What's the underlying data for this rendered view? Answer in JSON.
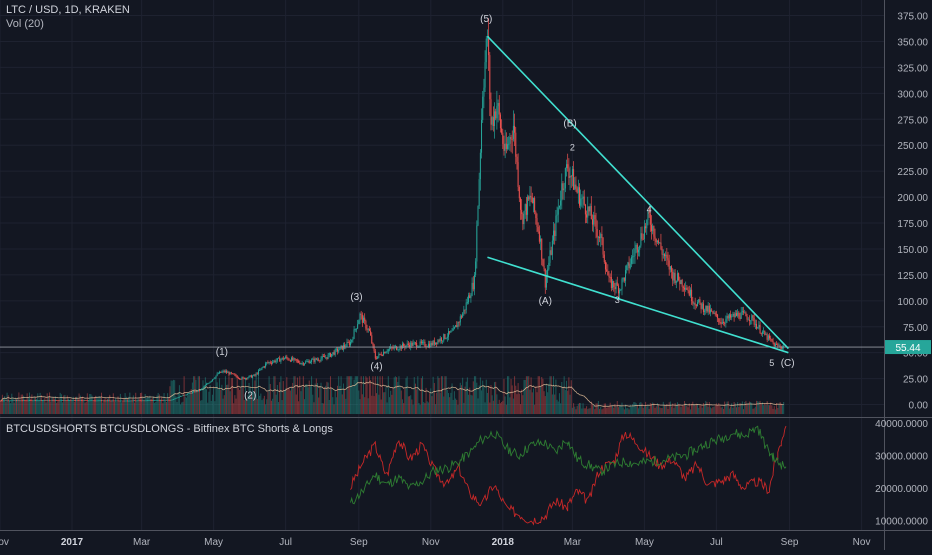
{
  "header": {
    "symbol_line": "LTC / USD, 1D, KRAKEN",
    "volume_line": "Vol (20)",
    "indicator_line": "BTCUSDSHORTS BTCUSDLONGS - Bitfinex BTC Shorts & Longs"
  },
  "price_badge": "55.44",
  "colors": {
    "background": "#131722",
    "up": "#26a69a",
    "down": "#ef5350",
    "trendline": "#40e0d0",
    "price_badge": "#26a69a",
    "shorts": "#c62828",
    "longs": "#2e7d32",
    "volume_ma": "#f0c8a0"
  },
  "chart_data": [
    {
      "type": "candlestick",
      "title": "LTC / USD, 1D, KRAKEN",
      "x_ticks": [
        "Nov",
        "2017",
        "Mar",
        "May",
        "Jul",
        "Sep",
        "Nov",
        "2018",
        "Mar",
        "May",
        "Jul",
        "Sep",
        "Nov"
      ],
      "y_ticks": [
        0,
        25,
        50,
        75,
        100,
        125,
        150,
        175,
        200,
        225,
        250,
        275,
        300,
        325,
        350,
        375
      ],
      "y_tick_labels": [
        "0.00",
        "25.00",
        "50.00",
        "75.00",
        "100.00",
        "125.00",
        "150.00",
        "175.00",
        "200.00",
        "225.00",
        "250.00",
        "275.00",
        "300.00",
        "325.00",
        "350.00",
        "375.00"
      ],
      "ylim": [
        -12,
        390
      ],
      "xlim": [
        "2016-11-01",
        "2018-11-20"
      ],
      "last_price": 55.44,
      "price_path": [
        [
          "2016-11-01",
          4
        ],
        [
          "2017-01-01",
          4.2
        ],
        [
          "2017-02-15",
          3.8
        ],
        [
          "2017-03-26",
          4.5
        ],
        [
          "2017-04-05",
          9
        ],
        [
          "2017-04-20",
          14
        ],
        [
          "2017-05-05",
          30
        ],
        [
          "2017-05-10",
          32
        ],
        [
          "2017-05-25",
          25
        ],
        [
          "2017-06-05",
          28
        ],
        [
          "2017-06-15",
          40
        ],
        [
          "2017-07-01",
          45
        ],
        [
          "2017-07-15",
          40
        ],
        [
          "2017-08-05",
          46
        ],
        [
          "2017-08-25",
          60
        ],
        [
          "2017-09-02",
          86
        ],
        [
          "2017-09-10",
          70
        ],
        [
          "2017-09-15",
          45
        ],
        [
          "2017-09-25",
          53
        ],
        [
          "2017-10-15",
          58
        ],
        [
          "2017-11-01",
          58
        ],
        [
          "2017-11-20",
          70
        ],
        [
          "2017-11-29",
          90
        ],
        [
          "2017-12-08",
          120
        ],
        [
          "2017-12-12",
          220
        ],
        [
          "2017-12-15",
          305
        ],
        [
          "2017-12-19",
          355
        ],
        [
          "2017-12-22",
          270
        ],
        [
          "2017-12-27",
          290
        ],
        [
          "2018-01-03",
          240
        ],
        [
          "2018-01-10",
          270
        ],
        [
          "2018-01-17",
          180
        ],
        [
          "2018-01-25",
          200
        ],
        [
          "2018-02-01",
          165
        ],
        [
          "2018-02-06",
          118
        ],
        [
          "2018-02-12",
          155
        ],
        [
          "2018-02-20",
          210
        ],
        [
          "2018-02-25",
          230
        ],
        [
          "2018-03-05",
          205
        ],
        [
          "2018-03-15",
          185
        ],
        [
          "2018-03-25",
          160
        ],
        [
          "2018-04-01",
          118
        ],
        [
          "2018-04-10",
          112
        ],
        [
          "2018-04-20",
          140
        ],
        [
          "2018-05-01",
          170
        ],
        [
          "2018-05-05",
          180
        ],
        [
          "2018-05-15",
          150
        ],
        [
          "2018-05-25",
          125
        ],
        [
          "2018-06-05",
          115
        ],
        [
          "2018-06-12",
          100
        ],
        [
          "2018-06-25",
          90
        ],
        [
          "2018-07-05",
          80
        ],
        [
          "2018-07-20",
          87
        ],
        [
          "2018-07-30",
          84
        ],
        [
          "2018-08-10",
          68
        ],
        [
          "2018-08-20",
          57
        ],
        [
          "2018-08-27",
          55.44
        ]
      ],
      "wave_labels": [
        {
          "text": "(1)",
          "date": "2017-05-08",
          "price": 48
        },
        {
          "text": "(2)",
          "date": "2017-06-01",
          "price": 6
        },
        {
          "text": "(3)",
          "date": "2017-08-30",
          "price": 101
        },
        {
          "text": "(4)",
          "date": "2017-09-16",
          "price": 34
        },
        {
          "text": "(5)",
          "date": "2017-12-18",
          "price": 369
        },
        {
          "text": "(A)",
          "date": "2018-02-06",
          "price": 97
        },
        {
          "text": "(B)",
          "date": "2018-02-27",
          "price": 268
        },
        {
          "text": "2",
          "date": "2018-03-01",
          "price": 245
        },
        {
          "text": "3",
          "date": "2018-04-08",
          "price": 98
        },
        {
          "text": "4",
          "date": "2018-05-05",
          "price": 185
        },
        {
          "text": "5",
          "date": "2018-08-22",
          "price": 37
        },
        {
          "text": "(C)",
          "date": "2018-08-27",
          "price": 37
        }
      ],
      "trendlines": [
        {
          "from": [
            "2017-12-19",
            355
          ],
          "to": [
            "2018-08-31",
            54
          ]
        },
        {
          "from": [
            "2017-12-19",
            142
          ],
          "to": [
            "2018-08-31",
            50
          ]
        }
      ],
      "horizontal_line": 55.44
    },
    {
      "type": "line",
      "title": "BTCUSDSHORTS BTCUSDLONGS - Bitfinex BTC Shorts & Longs",
      "y_ticks": [
        10000,
        20000,
        30000,
        40000
      ],
      "y_tick_labels": [
        "10000.0000",
        "20000.0000",
        "30000.0000",
        "40000.0000"
      ],
      "ylim": [
        7000,
        41500
      ],
      "series": [
        {
          "key": "shorts",
          "points": [
            [
              "2017-08-25",
              20000
            ],
            [
              "2017-09-05",
              28000
            ],
            [
              "2017-09-15",
              33000
            ],
            [
              "2017-09-25",
              24000
            ],
            [
              "2017-10-05",
              35000
            ],
            [
              "2017-10-15",
              29000
            ],
            [
              "2017-10-25",
              33000
            ],
            [
              "2017-11-05",
              25000
            ],
            [
              "2017-11-15",
              21000
            ],
            [
              "2017-11-25",
              26000
            ],
            [
              "2017-12-05",
              18000
            ],
            [
              "2017-12-15",
              15000
            ],
            [
              "2017-12-25",
              21000
            ],
            [
              "2018-01-05",
              13500
            ],
            [
              "2018-01-15",
              12000
            ],
            [
              "2018-01-25",
              10000
            ],
            [
              "2018-02-05",
              11000
            ],
            [
              "2018-02-15",
              16000
            ],
            [
              "2018-02-25",
              14000
            ],
            [
              "2018-03-05",
              19000
            ],
            [
              "2018-03-15",
              16000
            ],
            [
              "2018-03-25",
              26000
            ],
            [
              "2018-04-05",
              28000
            ],
            [
              "2018-04-15",
              37000
            ],
            [
              "2018-04-25",
              34000
            ],
            [
              "2018-05-05",
              30000
            ],
            [
              "2018-05-15",
              27000
            ],
            [
              "2018-05-25",
              29000
            ],
            [
              "2018-06-05",
              23000
            ],
            [
              "2018-06-15",
              27000
            ],
            [
              "2018-06-25",
              21000
            ],
            [
              "2018-07-05",
              22000
            ],
            [
              "2018-07-15",
              24000
            ],
            [
              "2018-07-25",
              20000
            ],
            [
              "2018-08-05",
              22000
            ],
            [
              "2018-08-15",
              19500
            ],
            [
              "2018-08-22",
              30000
            ],
            [
              "2018-08-29",
              39000
            ]
          ]
        },
        {
          "key": "longs",
          "points": [
            [
              "2017-08-25",
              15000
            ],
            [
              "2017-09-05",
              19000
            ],
            [
              "2017-09-15",
              24000
            ],
            [
              "2017-09-25",
              21000
            ],
            [
              "2017-10-05",
              23000
            ],
            [
              "2017-10-15",
              20000
            ],
            [
              "2017-10-25",
              22000
            ],
            [
              "2017-11-05",
              25500
            ],
            [
              "2017-11-15",
              26000
            ],
            [
              "2017-11-25",
              28000
            ],
            [
              "2017-12-05",
              31000
            ],
            [
              "2017-12-15",
              35000
            ],
            [
              "2017-12-25",
              37000
            ],
            [
              "2018-01-05",
              32000
            ],
            [
              "2018-01-15",
              30000
            ],
            [
              "2018-01-25",
              33000
            ],
            [
              "2018-02-05",
              34000
            ],
            [
              "2018-02-15",
              31000
            ],
            [
              "2018-02-25",
              35000
            ],
            [
              "2018-03-05",
              29000
            ],
            [
              "2018-03-15",
              27000
            ],
            [
              "2018-03-25",
              25000
            ],
            [
              "2018-04-05",
              27000
            ],
            [
              "2018-04-15",
              28000
            ],
            [
              "2018-04-25",
              27500
            ],
            [
              "2018-05-05",
              28000
            ],
            [
              "2018-05-15",
              28500
            ],
            [
              "2018-05-25",
              29000
            ],
            [
              "2018-06-05",
              30000
            ],
            [
              "2018-06-15",
              32000
            ],
            [
              "2018-06-25",
              34000
            ],
            [
              "2018-07-05",
              35000
            ],
            [
              "2018-07-15",
              37000
            ],
            [
              "2018-07-25",
              36000
            ],
            [
              "2018-08-05",
              38500
            ],
            [
              "2018-08-15",
              31000
            ],
            [
              "2018-08-22",
              28000
            ],
            [
              "2018-08-29",
              26500
            ]
          ]
        }
      ]
    }
  ]
}
